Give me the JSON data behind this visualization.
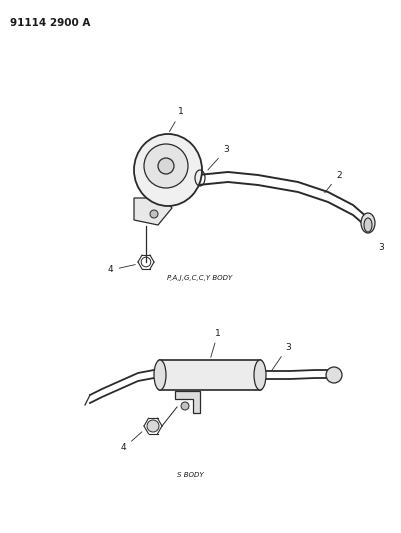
{
  "title": "91114 2900 A",
  "label1_top": "P,A,J,G,C,C,Y BODY",
  "label2_bottom": "S BODY",
  "background_color": "#ffffff",
  "line_color": "#2a2a2a",
  "text_color": "#1a1a1a",
  "title_fontsize": 7.5,
  "label_fontsize": 5.0,
  "part_label_fontsize": 6.5
}
